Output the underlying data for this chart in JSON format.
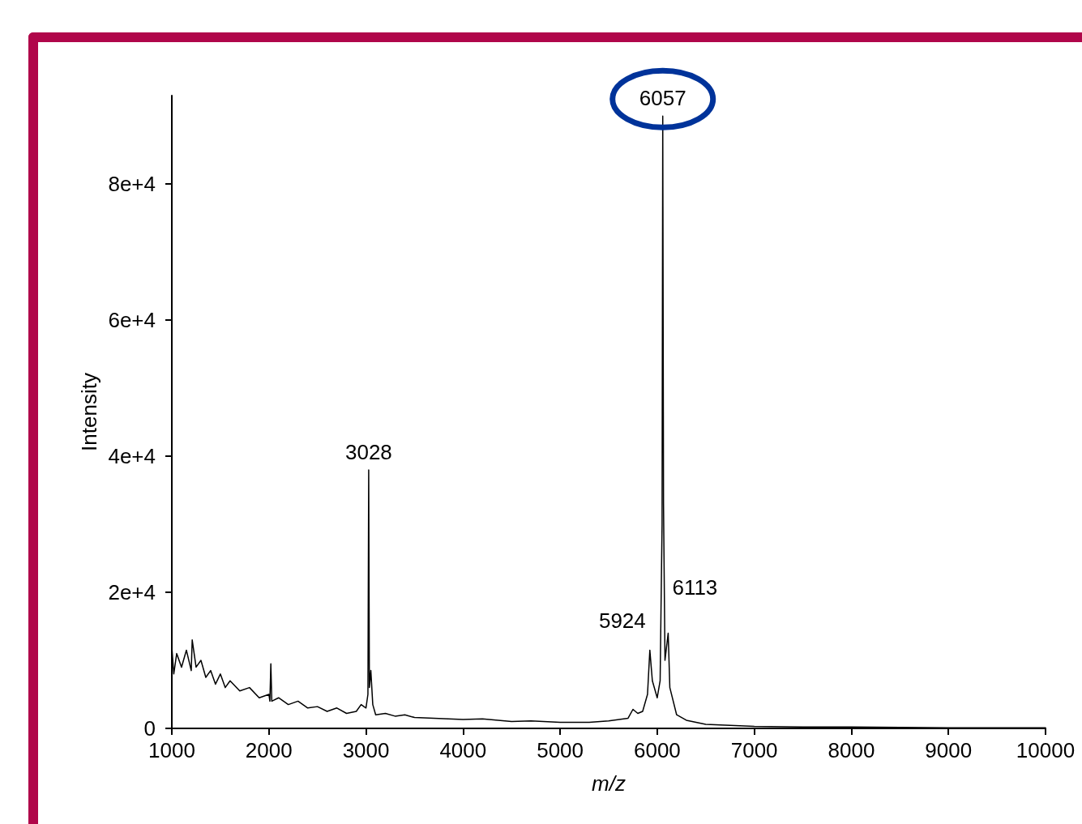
{
  "chart_data": {
    "type": "line",
    "xlabel": "m/z",
    "ylabel": "Intensity",
    "x": [
      1000,
      1020,
      1050,
      1100,
      1150,
      1200,
      1210,
      1250,
      1300,
      1350,
      1400,
      1450,
      1500,
      1550,
      1600,
      1700,
      1800,
      1900,
      2000,
      2010,
      2020,
      2030,
      2100,
      2200,
      2300,
      2400,
      2500,
      2600,
      2700,
      2800,
      2900,
      2950,
      3000,
      3020,
      3028,
      3035,
      3050,
      3070,
      3100,
      3200,
      3300,
      3400,
      3500,
      3700,
      4000,
      4200,
      4500,
      4700,
      5000,
      5300,
      5500,
      5700,
      5750,
      5800,
      5850,
      5900,
      5924,
      5950,
      6000,
      6030,
      6050,
      6057,
      6065,
      6080,
      6113,
      6130,
      6200,
      6300,
      6500,
      7000,
      7500,
      8000,
      9000,
      10000
    ],
    "series": [
      {
        "color": "#000000",
        "values": [
          12000,
          8000,
          11000,
          9000,
          11500,
          8500,
          13000,
          9000,
          10000,
          7500,
          8500,
          6500,
          8000,
          6000,
          7000,
          5500,
          6000,
          4500,
          5000,
          4000,
          9500,
          4000,
          4500,
          3500,
          4000,
          3000,
          3200,
          2500,
          3000,
          2200,
          2500,
          3500,
          3000,
          5000,
          38000,
          6000,
          8500,
          3500,
          2000,
          2200,
          1800,
          2000,
          1600,
          1500,
          1300,
          1400,
          1000,
          1100,
          900,
          900,
          1100,
          1500,
          2800,
          2200,
          2500,
          5000,
          11500,
          7000,
          4500,
          7000,
          30000,
          90000,
          33000,
          10000,
          14000,
          6000,
          2000,
          1200,
          600,
          300,
          200,
          200,
          100,
          100
        ]
      }
    ],
    "xlim": [
      1000,
      10000
    ],
    "xticks": [
      1000,
      2000,
      3000,
      4000,
      5000,
      6000,
      7000,
      8000,
      9000,
      10000
    ],
    "ylim": [
      0,
      93000
    ],
    "yticks": [
      {
        "value": 0,
        "label": "0"
      },
      {
        "value": 20000,
        "label": "2e+4"
      },
      {
        "value": 40000,
        "label": "4e+4"
      },
      {
        "value": 60000,
        "label": "6e+4"
      },
      {
        "value": 80000,
        "label": "8e+4"
      }
    ],
    "marker": "none",
    "line_style": "solid",
    "annotations": [
      {
        "text": "3028",
        "x": 3028,
        "y": 38000
      },
      {
        "text": "5924",
        "x": 5924,
        "y": 11500
      },
      {
        "text": "6057",
        "x": 6057,
        "y": 90000
      },
      {
        "text": "6113",
        "x": 6113,
        "y": 14000
      }
    ]
  }
}
